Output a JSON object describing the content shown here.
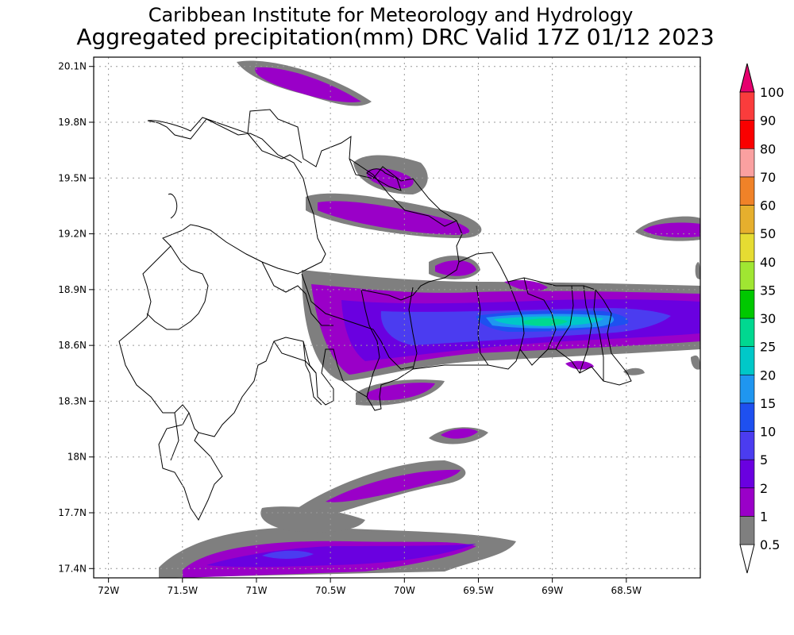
{
  "title": {
    "line1": "Caribbean Institute for Meteorology and Hydrology",
    "line2": "Aggregated precipitation(mm) DRC Valid 17Z 01/12 2023"
  },
  "map": {
    "region": "Dominican Republic",
    "extent": {
      "lon": [
        -72.1,
        -68.0
      ],
      "lat": [
        17.35,
        20.15
      ]
    },
    "lon_ticks": [
      {
        "value": -72.0,
        "label": "72W"
      },
      {
        "value": -71.5,
        "label": "71.5W"
      },
      {
        "value": -71.0,
        "label": "71W"
      },
      {
        "value": -70.5,
        "label": "70.5W"
      },
      {
        "value": -70.0,
        "label": "70W"
      },
      {
        "value": -69.5,
        "label": "69.5W"
      },
      {
        "value": -69.0,
        "label": "69W"
      },
      {
        "value": -68.5,
        "label": "68.5W"
      }
    ],
    "lat_ticks": [
      {
        "value": 20.1,
        "label": "20.1N"
      },
      {
        "value": 19.8,
        "label": "19.8N"
      },
      {
        "value": 19.5,
        "label": "19.5N"
      },
      {
        "value": 19.2,
        "label": "19.2N"
      },
      {
        "value": 18.9,
        "label": "18.9N"
      },
      {
        "value": 18.6,
        "label": "18.6N"
      },
      {
        "value": 18.3,
        "label": "18.3N"
      },
      {
        "value": 18.0,
        "label": "18N"
      },
      {
        "value": 17.7,
        "label": "17.7N"
      },
      {
        "value": 17.4,
        "label": "17.4N"
      }
    ],
    "grid": "dotted"
  },
  "colorbar": {
    "units": "mm",
    "levels": [
      {
        "label": "0.5",
        "color": "#ffffff"
      },
      {
        "label": "1",
        "color": "#7f7f7f"
      },
      {
        "label": "2",
        "color": "#9a00c8"
      },
      {
        "label": "5",
        "color": "#6a00e0"
      },
      {
        "label": "10",
        "color": "#4b3cf0"
      },
      {
        "label": "15",
        "color": "#1e50f0"
      },
      {
        "label": "20",
        "color": "#1f96f0"
      },
      {
        "label": "25",
        "color": "#00c8c8"
      },
      {
        "label": "30",
        "color": "#00d890"
      },
      {
        "label": "35",
        "color": "#00c800"
      },
      {
        "label": "40",
        "color": "#a0e632"
      },
      {
        "label": "50",
        "color": "#e6dc32"
      },
      {
        "label": "60",
        "color": "#e6af2d"
      },
      {
        "label": "70",
        "color": "#f08228"
      },
      {
        "label": "80",
        "color": "#faa0a0"
      },
      {
        "label": "90",
        "color": "#fa0000"
      },
      {
        "label": "100",
        "color": "#fa3c3c"
      }
    ],
    "over_color": "#e6006e"
  }
}
